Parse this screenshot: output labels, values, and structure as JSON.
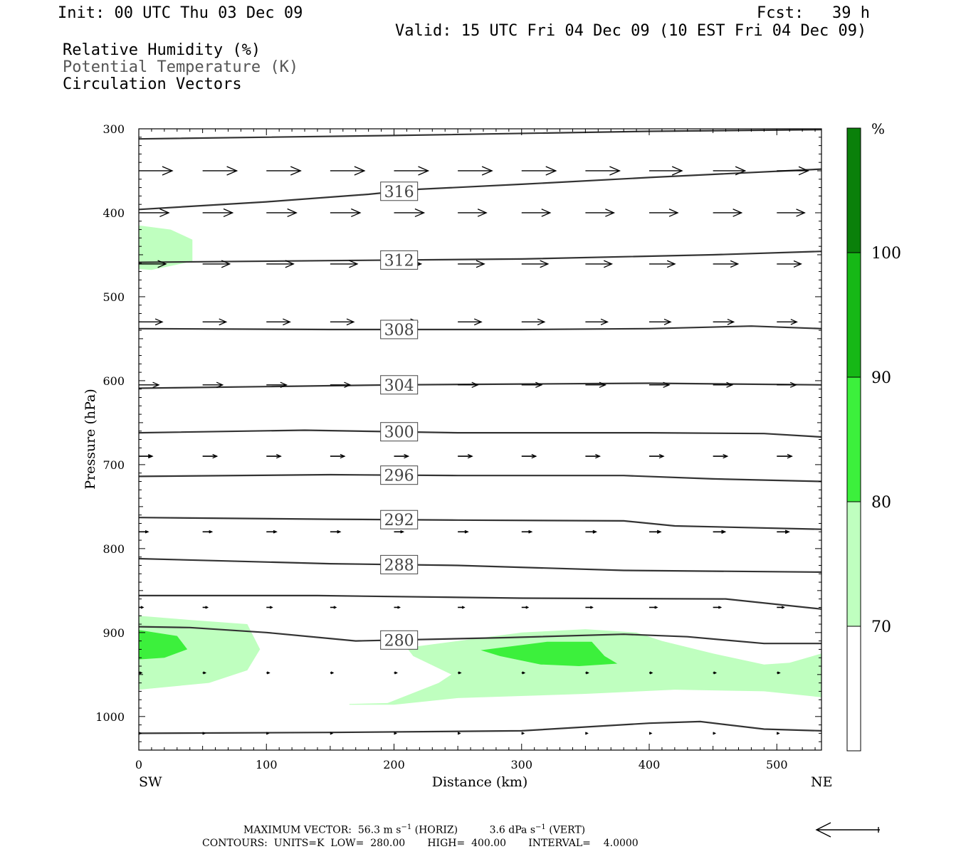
{
  "header": {
    "init": "Init: 00 UTC Thu 03 Dec 09",
    "fcst": "Fcst:   39 h",
    "valid": "Valid: 15 UTC Fri 04 Dec 09 (10 EST Fri 04 Dec 09)",
    "fields": [
      "Relative Humidity (%)",
      "Potential Temperature (K)",
      "Circulation Vectors"
    ]
  },
  "footer": {
    "max_label": "MAXIMUM VECTOR:",
    "max_horiz_value": "56.3 m s",
    "max_horiz_suffix": "(HORIZ)",
    "max_vert_value": "3.6 dPa s",
    "max_vert_suffix": "(VERT)",
    "exponent": "−1",
    "contours": "CONTOURS:  UNITS=K  LOW=  280.00       HIGH=  400.00       INTERVAL=    4.0000"
  },
  "colors": {
    "rh_70": "#bfffbf",
    "rh_80": "#3cf03c",
    "rh_90": "#16b816",
    "rh_100": "#0a800a",
    "contour": "#333333",
    "vector": "#000000"
  },
  "chart_data": {
    "type": "cross-section",
    "xlabel": "Distance (km)",
    "ylabel": "Pressure (hPa)",
    "xlim": [
      0,
      535
    ],
    "ylim": [
      1040,
      300
    ],
    "x_ticks": [
      0,
      100,
      200,
      300,
      400,
      500
    ],
    "y_ticks": [
      300,
      400,
      500,
      600,
      700,
      800,
      900,
      1000
    ],
    "x_end_labels": {
      "left": "SW",
      "right": "NE"
    },
    "colorbar": {
      "unit": "%",
      "levels": [
        70,
        80,
        90,
        100
      ],
      "colors": [
        "#ffffff",
        "#bfffbf",
        "#3cf03c",
        "#16b816",
        "#0a800a"
      ]
    },
    "theta_contours": [
      {
        "label": "",
        "points": [
          [
            0,
            312
          ],
          [
            200,
            308
          ],
          [
            400,
            303
          ],
          [
            535,
            301
          ]
        ]
      },
      {
        "label": "316",
        "points": [
          [
            0,
            396
          ],
          [
            100,
            387
          ],
          [
            180,
            378
          ],
          [
            220,
            372
          ],
          [
            300,
            366
          ],
          [
            400,
            358
          ],
          [
            535,
            348
          ]
        ]
      },
      {
        "label": "312",
        "points": [
          [
            0,
            459
          ],
          [
            150,
            457
          ],
          [
            300,
            455
          ],
          [
            450,
            450
          ],
          [
            535,
            446
          ]
        ]
      },
      {
        "label": "308",
        "points": [
          [
            0,
            538
          ],
          [
            150,
            539
          ],
          [
            300,
            539
          ],
          [
            400,
            538
          ],
          [
            480,
            535
          ],
          [
            535,
            538
          ]
        ]
      },
      {
        "label": "304",
        "points": [
          [
            0,
            609
          ],
          [
            100,
            607
          ],
          [
            200,
            605
          ],
          [
            300,
            604
          ],
          [
            400,
            603
          ],
          [
            535,
            605
          ]
        ]
      },
      {
        "label": "300",
        "points": [
          [
            0,
            662
          ],
          [
            130,
            659
          ],
          [
            250,
            662
          ],
          [
            400,
            662
          ],
          [
            490,
            663
          ],
          [
            535,
            667
          ]
        ]
      },
      {
        "label": "296",
        "points": [
          [
            0,
            714
          ],
          [
            150,
            712
          ],
          [
            250,
            713
          ],
          [
            380,
            713
          ],
          [
            450,
            717
          ],
          [
            535,
            720
          ]
        ]
      },
      {
        "label": "292",
        "points": [
          [
            0,
            763
          ],
          [
            150,
            765
          ],
          [
            250,
            766
          ],
          [
            380,
            767
          ],
          [
            420,
            773
          ],
          [
            535,
            777
          ]
        ]
      },
      {
        "label": "288",
        "points": [
          [
            0,
            812
          ],
          [
            150,
            818
          ],
          [
            250,
            820
          ],
          [
            380,
            826
          ],
          [
            535,
            828
          ]
        ]
      },
      {
        "label": "",
        "points": [
          [
            0,
            856
          ],
          [
            140,
            856
          ],
          [
            300,
            859
          ],
          [
            460,
            860
          ],
          [
            535,
            872
          ]
        ]
      },
      {
        "label": "280",
        "points": [
          [
            0,
            893
          ],
          [
            40,
            894
          ],
          [
            100,
            900
          ],
          [
            170,
            910
          ],
          [
            290,
            906
          ],
          [
            380,
            902
          ],
          [
            430,
            905
          ],
          [
            490,
            913
          ],
          [
            535,
            913
          ]
        ]
      },
      {
        "label": "",
        "points": [
          [
            0,
            1020
          ],
          [
            150,
            1019
          ],
          [
            300,
            1017
          ],
          [
            400,
            1008
          ],
          [
            440,
            1006
          ],
          [
            490,
            1015
          ],
          [
            535,
            1017
          ]
        ]
      }
    ],
    "rh_areas": [
      {
        "level": 70,
        "points": [
          [
            0,
            415
          ],
          [
            25,
            420
          ],
          [
            42,
            432
          ],
          [
            42,
            458
          ],
          [
            10,
            468
          ],
          [
            0,
            467
          ]
        ]
      },
      {
        "level": 70,
        "points": [
          [
            0,
            880
          ],
          [
            40,
            885
          ],
          [
            85,
            890
          ],
          [
            95,
            920
          ],
          [
            85,
            945
          ],
          [
            55,
            960
          ],
          [
            0,
            968
          ]
        ]
      },
      {
        "level": 70,
        "points": [
          [
            165,
            985
          ],
          [
            195,
            984
          ],
          [
            235,
            960
          ],
          [
            245,
            950
          ],
          [
            215,
            928
          ],
          [
            210,
            918
          ],
          [
            300,
            900
          ],
          [
            350,
            896
          ],
          [
            390,
            900
          ],
          [
            410,
            910
          ],
          [
            450,
            925
          ],
          [
            490,
            938
          ],
          [
            510,
            936
          ],
          [
            535,
            925
          ],
          [
            535,
            977
          ],
          [
            490,
            970
          ],
          [
            420,
            968
          ],
          [
            350,
            973
          ],
          [
            250,
            978
          ],
          [
            200,
            986
          ],
          [
            165,
            986
          ]
        ]
      },
      {
        "level": 80,
        "points": [
          [
            0,
            897
          ],
          [
            30,
            904
          ],
          [
            38,
            920
          ],
          [
            20,
            930
          ],
          [
            0,
            932
          ]
        ]
      },
      {
        "level": 80,
        "points": [
          [
            268,
            921
          ],
          [
            320,
            911
          ],
          [
            355,
            911
          ],
          [
            365,
            928
          ],
          [
            375,
            937
          ],
          [
            345,
            940
          ],
          [
            315,
            938
          ],
          [
            283,
            928
          ]
        ]
      }
    ],
    "vector_rows": [
      {
        "p": 350,
        "ws": 1,
        "arrows": [
          [
            0,
            47
          ],
          [
            50,
            48
          ],
          [
            100,
            48
          ],
          [
            150,
            48
          ],
          [
            200,
            48
          ],
          [
            250,
            48
          ],
          [
            300,
            48
          ],
          [
            350,
            48
          ],
          [
            400,
            46
          ],
          [
            450,
            45
          ],
          [
            500,
            44
          ]
        ]
      },
      {
        "p": 400,
        "ws": 1,
        "arrows": [
          [
            0,
            42
          ],
          [
            50,
            42
          ],
          [
            100,
            42
          ],
          [
            150,
            42
          ],
          [
            200,
            42
          ],
          [
            250,
            40
          ],
          [
            300,
            40
          ],
          [
            350,
            40
          ],
          [
            400,
            40
          ],
          [
            450,
            40
          ],
          [
            500,
            39
          ]
        ]
      },
      {
        "p": 461,
        "ws": 1,
        "arrows": [
          [
            0,
            38
          ],
          [
            50,
            38
          ],
          [
            100,
            38
          ],
          [
            150,
            38
          ],
          [
            200,
            38
          ],
          [
            250,
            37
          ],
          [
            300,
            37
          ],
          [
            350,
            37
          ],
          [
            400,
            36
          ],
          [
            450,
            35
          ],
          [
            500,
            34
          ]
        ]
      },
      {
        "p": 530,
        "ws": 0.8,
        "arrows": [
          [
            0,
            33
          ],
          [
            50,
            33
          ],
          [
            100,
            33
          ],
          [
            150,
            33
          ],
          [
            200,
            33
          ],
          [
            250,
            33
          ],
          [
            300,
            32
          ],
          [
            350,
            31
          ],
          [
            400,
            30
          ],
          [
            450,
            29
          ],
          [
            500,
            28
          ]
        ]
      },
      {
        "p": 605,
        "ws": 0.8,
        "arrows": [
          [
            0,
            28
          ],
          [
            50,
            28
          ],
          [
            100,
            28
          ],
          [
            150,
            28
          ],
          [
            200,
            28
          ],
          [
            250,
            28
          ],
          [
            300,
            28
          ],
          [
            350,
            28
          ],
          [
            400,
            28
          ],
          [
            450,
            27
          ],
          [
            500,
            27
          ]
        ]
      },
      {
        "p": 690,
        "ws": 0.6,
        "arrows": [
          [
            0,
            19
          ],
          [
            50,
            20
          ],
          [
            100,
            20
          ],
          [
            150,
            20
          ],
          [
            200,
            20
          ],
          [
            250,
            20
          ],
          [
            300,
            20
          ],
          [
            350,
            20
          ],
          [
            400,
            20
          ],
          [
            450,
            20
          ],
          [
            500,
            21
          ]
        ]
      },
      {
        "p": 780,
        "ws": 0.5,
        "arrows": [
          [
            0,
            13
          ],
          [
            50,
            13
          ],
          [
            100,
            14
          ],
          [
            150,
            14
          ],
          [
            200,
            13
          ],
          [
            250,
            14
          ],
          [
            300,
            14
          ],
          [
            350,
            15
          ],
          [
            400,
            16
          ],
          [
            450,
            17
          ],
          [
            500,
            17
          ]
        ]
      },
      {
        "p": 870,
        "ws": 0.4,
        "arrows": [
          [
            0,
            6
          ],
          [
            50,
            7
          ],
          [
            100,
            8
          ],
          [
            150,
            8
          ],
          [
            200,
            8
          ],
          [
            250,
            9
          ],
          [
            300,
            9
          ],
          [
            350,
            10
          ],
          [
            400,
            11
          ],
          [
            450,
            11
          ],
          [
            500,
            10
          ]
        ]
      },
      {
        "p": 948,
        "ws": 0.3,
        "arrows": [
          [
            0,
            4
          ],
          [
            50,
            4
          ],
          [
            100,
            4
          ],
          [
            150,
            4
          ],
          [
            200,
            4
          ],
          [
            250,
            4
          ],
          [
            300,
            4
          ],
          [
            350,
            4
          ],
          [
            400,
            4
          ],
          [
            450,
            4
          ],
          [
            500,
            4
          ]
        ]
      },
      {
        "p": 1020,
        "ws": 0.3,
        "arrows": [
          [
            0,
            3
          ],
          [
            50,
            3
          ],
          [
            100,
            3
          ],
          [
            150,
            3
          ],
          [
            200,
            3
          ],
          [
            250,
            3
          ],
          [
            300,
            3
          ],
          [
            350,
            3
          ],
          [
            400,
            3
          ],
          [
            450,
            3
          ],
          [
            500,
            3
          ]
        ]
      }
    ]
  }
}
